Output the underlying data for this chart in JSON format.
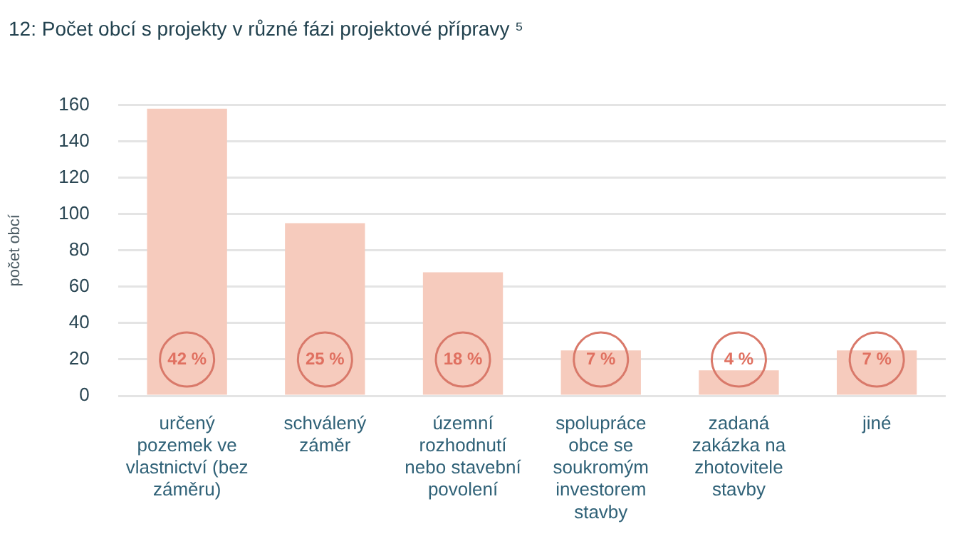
{
  "chart_data": {
    "type": "bar",
    "title": "12: Počet obcí s projekty v různé fázi projektové přípravy ⁵",
    "ylabel": "počet obcí",
    "categories": [
      "určený pozemek ve vlastnictví (bez záměru)",
      "schválený záměr",
      "územní rozhodnutí nebo stavební povolení",
      "spolupráce obce se soukromým investorem stavby",
      "zadaná zakázka na zhotovitele stavby",
      "jiné"
    ],
    "values": [
      158,
      95,
      68,
      25,
      14,
      25
    ],
    "annotations": [
      {
        "text": "42 %",
        "x": "určený pozemek ve vlastnictví (bez záměru)",
        "y": 20
      },
      {
        "text": "25 %",
        "x": "schválený záměr",
        "y": 20
      },
      {
        "text": "18 %",
        "x": "územní rozhodnutí nebo stavební povolení",
        "y": 20
      },
      {
        "text": "7 %",
        "x": "spolupráce obce se soukromým investorem stavby",
        "y": 20
      },
      {
        "text": "4 %",
        "x": "zadaná zakázka na zhotovitele stavby",
        "y": 20
      },
      {
        "text": "7 %",
        "x": "jiné",
        "y": 20
      }
    ],
    "color": "#f6cbbd",
    "ylim": [
      0,
      160
    ],
    "yticks": [
      0,
      20,
      40,
      60,
      80,
      100,
      120,
      140,
      160
    ],
    "grid": "y",
    "legend": false
  }
}
